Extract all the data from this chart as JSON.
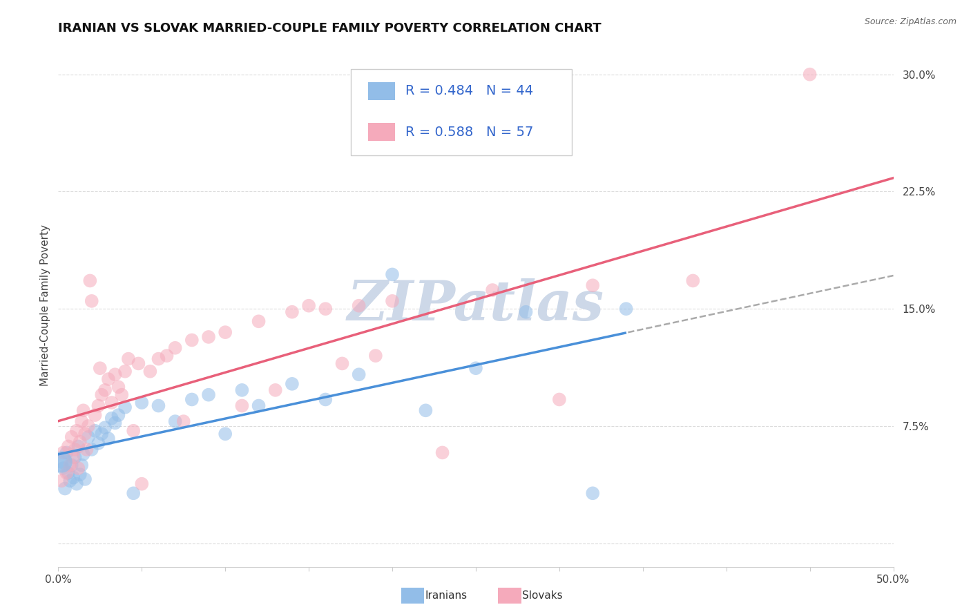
{
  "title": "IRANIAN VS SLOVAK MARRIED-COUPLE FAMILY POVERTY CORRELATION CHART",
  "source_text": "Source: ZipAtlas.com",
  "ylabel": "Married-Couple Family Poverty",
  "xlim": [
    0.0,
    0.5
  ],
  "ylim": [
    -0.015,
    0.32
  ],
  "xticks": [
    0.0,
    0.05,
    0.1,
    0.15,
    0.2,
    0.25,
    0.3,
    0.35,
    0.4,
    0.45,
    0.5
  ],
  "xticklabels": [
    "0.0%",
    "",
    "",
    "",
    "",
    "",
    "",
    "",
    "",
    "",
    "50.0%"
  ],
  "ytick_positions": [
    0.0,
    0.075,
    0.15,
    0.225,
    0.3
  ],
  "ytick_labels": [
    "",
    "7.5%",
    "15.0%",
    "22.5%",
    "30.0%"
  ],
  "iranian_color": "#92bde8",
  "slovak_color": "#f5aabb",
  "trend_iranian_color": "#4a90d9",
  "trend_slovak_color": "#e8607a",
  "watermark_color": "#cdd8e8",
  "legend_text_color": "#3366cc",
  "background_color": "#ffffff",
  "grid_color": "#cccccc",
  "iranian_points": [
    [
      0.002,
      0.052
    ],
    [
      0.003,
      0.048
    ],
    [
      0.004,
      0.035
    ],
    [
      0.005,
      0.058
    ],
    [
      0.006,
      0.045
    ],
    [
      0.007,
      0.04
    ],
    [
      0.008,
      0.05
    ],
    [
      0.009,
      0.042
    ],
    [
      0.01,
      0.055
    ],
    [
      0.011,
      0.038
    ],
    [
      0.012,
      0.062
    ],
    [
      0.013,
      0.044
    ],
    [
      0.014,
      0.05
    ],
    [
      0.015,
      0.057
    ],
    [
      0.016,
      0.041
    ],
    [
      0.018,
      0.068
    ],
    [
      0.02,
      0.06
    ],
    [
      0.022,
      0.072
    ],
    [
      0.024,
      0.064
    ],
    [
      0.026,
      0.07
    ],
    [
      0.028,
      0.074
    ],
    [
      0.03,
      0.067
    ],
    [
      0.032,
      0.08
    ],
    [
      0.034,
      0.077
    ],
    [
      0.036,
      0.082
    ],
    [
      0.04,
      0.087
    ],
    [
      0.045,
      0.032
    ],
    [
      0.05,
      0.09
    ],
    [
      0.06,
      0.088
    ],
    [
      0.07,
      0.078
    ],
    [
      0.08,
      0.092
    ],
    [
      0.09,
      0.095
    ],
    [
      0.1,
      0.07
    ],
    [
      0.11,
      0.098
    ],
    [
      0.12,
      0.088
    ],
    [
      0.14,
      0.102
    ],
    [
      0.16,
      0.092
    ],
    [
      0.18,
      0.108
    ],
    [
      0.2,
      0.172
    ],
    [
      0.22,
      0.085
    ],
    [
      0.25,
      0.112
    ],
    [
      0.28,
      0.148
    ],
    [
      0.32,
      0.032
    ],
    [
      0.34,
      0.15
    ]
  ],
  "slovak_points": [
    [
      0.002,
      0.04
    ],
    [
      0.003,
      0.058
    ],
    [
      0.005,
      0.045
    ],
    [
      0.006,
      0.062
    ],
    [
      0.007,
      0.05
    ],
    [
      0.008,
      0.068
    ],
    [
      0.009,
      0.055
    ],
    [
      0.01,
      0.06
    ],
    [
      0.011,
      0.072
    ],
    [
      0.012,
      0.048
    ],
    [
      0.013,
      0.065
    ],
    [
      0.014,
      0.078
    ],
    [
      0.015,
      0.085
    ],
    [
      0.016,
      0.07
    ],
    [
      0.017,
      0.06
    ],
    [
      0.018,
      0.075
    ],
    [
      0.019,
      0.168
    ],
    [
      0.02,
      0.155
    ],
    [
      0.022,
      0.082
    ],
    [
      0.024,
      0.088
    ],
    [
      0.025,
      0.112
    ],
    [
      0.026,
      0.095
    ],
    [
      0.028,
      0.098
    ],
    [
      0.03,
      0.105
    ],
    [
      0.032,
      0.09
    ],
    [
      0.034,
      0.108
    ],
    [
      0.036,
      0.1
    ],
    [
      0.038,
      0.095
    ],
    [
      0.04,
      0.11
    ],
    [
      0.042,
      0.118
    ],
    [
      0.045,
      0.072
    ],
    [
      0.048,
      0.115
    ],
    [
      0.05,
      0.038
    ],
    [
      0.055,
      0.11
    ],
    [
      0.06,
      0.118
    ],
    [
      0.065,
      0.12
    ],
    [
      0.07,
      0.125
    ],
    [
      0.075,
      0.078
    ],
    [
      0.08,
      0.13
    ],
    [
      0.09,
      0.132
    ],
    [
      0.1,
      0.135
    ],
    [
      0.11,
      0.088
    ],
    [
      0.12,
      0.142
    ],
    [
      0.13,
      0.098
    ],
    [
      0.14,
      0.148
    ],
    [
      0.15,
      0.152
    ],
    [
      0.16,
      0.15
    ],
    [
      0.18,
      0.152
    ],
    [
      0.2,
      0.155
    ],
    [
      0.23,
      0.058
    ],
    [
      0.26,
      0.162
    ],
    [
      0.3,
      0.092
    ],
    [
      0.32,
      0.165
    ],
    [
      0.38,
      0.168
    ],
    [
      0.45,
      0.3
    ],
    [
      0.17,
      0.115
    ],
    [
      0.19,
      0.12
    ]
  ],
  "title_fontsize": 13,
  "axis_label_fontsize": 11,
  "tick_fontsize": 11,
  "legend_fontsize": 14
}
